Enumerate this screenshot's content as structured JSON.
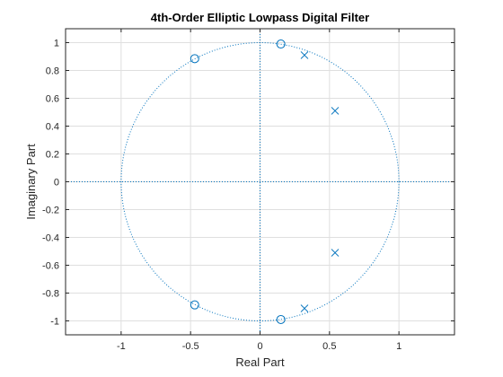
{
  "chart_data": {
    "type": "scatter",
    "title": "4th-Order Elliptic Lowpass Digital Filter",
    "xlabel": "Real Part",
    "ylabel": "Imaginary Part",
    "xlim": [
      -1.4,
      1.4
    ],
    "ylim": [
      -1.1,
      1.1
    ],
    "xticks": [
      -1,
      -0.5,
      0,
      0.5,
      1
    ],
    "xtick_labels": [
      "-1",
      "-0.5",
      "0",
      "0.5",
      "1"
    ],
    "yticks": [
      -1,
      -0.8,
      -0.6,
      -0.4,
      -0.2,
      0,
      0.2,
      0.4,
      0.6,
      0.8,
      1
    ],
    "ytick_labels": [
      "-1",
      "-0.8",
      "-0.6",
      "-0.4",
      "-0.2",
      "0",
      "0.2",
      "0.4",
      "0.6",
      "0.8",
      "1"
    ],
    "grid": true,
    "unit_circle": true,
    "series": [
      {
        "marker": "circle",
        "color": "#0072bd",
        "x": [
          -0.47,
          0.15,
          -0.47,
          0.15
        ],
        "y": [
          0.885,
          0.99,
          -0.885,
          -0.99
        ]
      },
      {
        "marker": "x",
        "color": "#0072bd",
        "x": [
          0.32,
          0.54,
          0.54,
          0.32
        ],
        "y": [
          0.91,
          0.51,
          -0.51,
          -0.91
        ]
      }
    ]
  }
}
